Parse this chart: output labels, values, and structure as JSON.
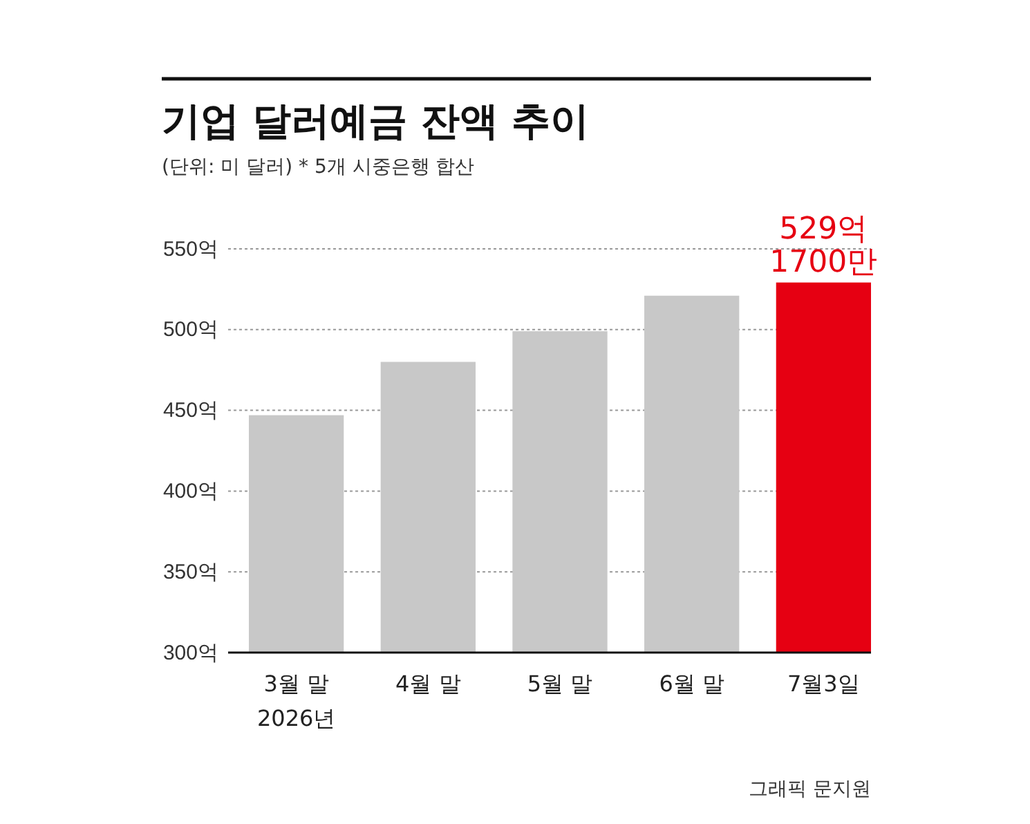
{
  "chart_data": {
    "type": "bar",
    "title": "기업 달러예금 잔액 추이",
    "subtitle": "(단위: 미 달러)  * 5개 시중은행 합산",
    "categories": [
      "3월 말\n2026년",
      "4월 말",
      "5월 말",
      "6월 말",
      "7월3일"
    ],
    "values": [
      447,
      480,
      499,
      521,
      529.17
    ],
    "colors": [
      "#c8c8c8",
      "#c8c8c8",
      "#c8c8c8",
      "#c8c8c8",
      "#e60012"
    ],
    "value_labels": [
      null,
      null,
      null,
      null,
      "529억\n1700만"
    ],
    "ylim": [
      300,
      550
    ],
    "yticks": [
      {
        "value": 300,
        "label": "300억"
      },
      {
        "value": 350,
        "label": "350억"
      },
      {
        "value": 400,
        "label": "400억"
      },
      {
        "value": 450,
        "label": "450억"
      },
      {
        "value": 500,
        "label": "500억"
      },
      {
        "value": 550,
        "label": "550억"
      }
    ],
    "grid": "y",
    "annotations": [
      "그래픽 문지원"
    ]
  }
}
